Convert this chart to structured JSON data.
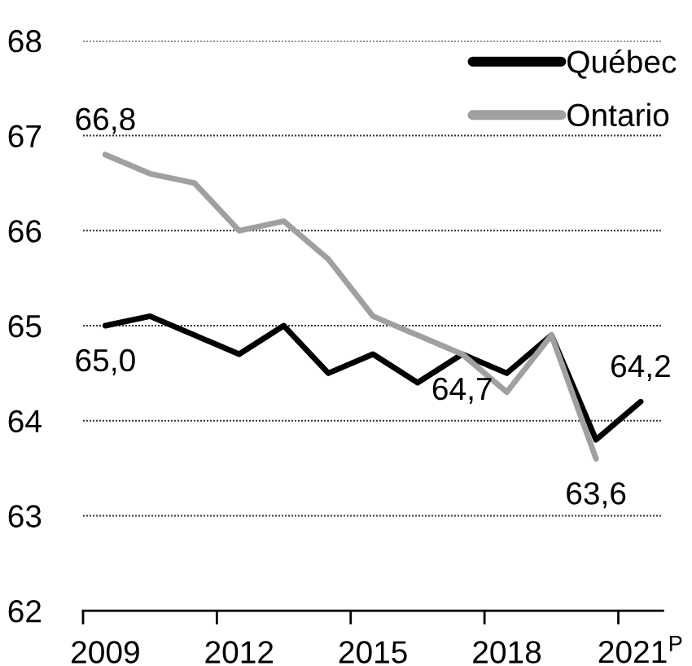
{
  "chart_data": {
    "type": "line",
    "categories": [
      "2009",
      null,
      null,
      "2012",
      null,
      null,
      "2015",
      null,
      null,
      "2018",
      null,
      null,
      "2021$^{P}$"
    ],
    "series": [
      {
        "name": "Québec",
        "color": "#000000",
        "values": [
          65.0,
          65.1,
          64.9,
          64.7,
          65.0,
          64.5,
          64.7,
          64.4,
          64.7,
          64.5,
          64.9,
          63.8,
          64.2
        ],
        "value_labels": [
          "65,0",
          null,
          null,
          null,
          null,
          null,
          null,
          null,
          "64,7",
          null,
          null,
          null,
          "64,2"
        ]
      },
      {
        "name": "Ontario",
        "color": "#a0a0a0",
        "values": [
          66.8,
          66.6,
          66.5,
          66.0,
          66.1,
          65.7,
          65.1,
          64.9,
          64.7,
          64.3,
          64.9,
          63.6,
          null
        ],
        "value_labels": [
          "66,8",
          null,
          null,
          null,
          null,
          null,
          null,
          null,
          null,
          null,
          null,
          "63,6",
          null
        ]
      }
    ],
    "ylim": [
      62,
      68
    ],
    "yticks": [
      62,
      63,
      64,
      65,
      66,
      67,
      68
    ],
    "grid": "y",
    "legend": "top right"
  }
}
